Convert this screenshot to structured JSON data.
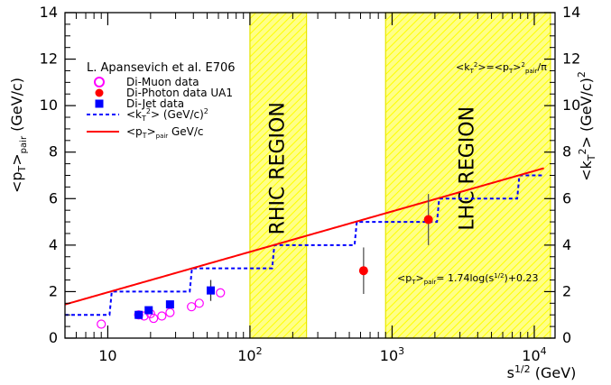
{
  "chart_data": {
    "type": "scatter",
    "title": "",
    "xlabel": "s^{1/2} (GeV)",
    "ylabel": "<p_T>_pair (GeV/c)",
    "y2label": "<k_T^2> (GeV/c)^2",
    "xscale": "log",
    "xlim": [
      5,
      14000
    ],
    "ylim": [
      0,
      14
    ],
    "grid": false,
    "legend_position": "top-left",
    "x_ticks": [
      {
        "value": 10,
        "base": "10",
        "exp": ""
      },
      {
        "value": 100,
        "base": "10",
        "exp": "2"
      },
      {
        "value": 1000,
        "base": "10",
        "exp": "3"
      },
      {
        "value": 10000,
        "base": "10",
        "exp": "4"
      }
    ],
    "y_ticks": [
      "0",
      "2",
      "4",
      "6",
      "8",
      "10",
      "12",
      "14"
    ],
    "legend": {
      "title": "L. Apansevich et al. E706",
      "entries": [
        {
          "label": "Di-Muon data",
          "marker": "open-circle",
          "color": "#ff00ff"
        },
        {
          "label": "Di-Photon data UA1",
          "marker": "filled-circle",
          "color": "#ff0000"
        },
        {
          "label": "Di-Jet data",
          "marker": "filled-square",
          "color": "#0000ff"
        },
        {
          "label": "<k_T^2> (GeV/c)^2",
          "marker": "dashed-line",
          "color": "#0000ff"
        },
        {
          "label": "<p_T>_pair GeV/c",
          "marker": "solid-line",
          "color": "#ff0000"
        }
      ]
    },
    "regions": [
      {
        "label": "RHIC REGION",
        "x": [
          100,
          250
        ],
        "color": "#ffff66"
      },
      {
        "label": "LHC REGION",
        "x": [
          900,
          13000
        ],
        "color": "#ffff66"
      }
    ],
    "annotations": {
      "upper_right": "<k_T^2> = <p_T>^2_pair / π",
      "fit_formula": "<p_T>_pair = 1.74log(s^{1/2}) + 0.23"
    },
    "series": [
      {
        "name": "Di-Muon data",
        "marker": "open-circle",
        "color": "#ff00ff",
        "points": [
          {
            "x": 9,
            "y": 0.6
          },
          {
            "x": 16.5,
            "y": 1.0
          },
          {
            "x": 18,
            "y": 0.95
          },
          {
            "x": 20,
            "y": 1.05
          },
          {
            "x": 21,
            "y": 0.85
          },
          {
            "x": 24,
            "y": 0.95
          },
          {
            "x": 27.4,
            "y": 1.1
          },
          {
            "x": 38.8,
            "y": 1.35
          },
          {
            "x": 44,
            "y": 1.5
          },
          {
            "x": 62,
            "y": 1.95
          }
        ]
      },
      {
        "name": "Di-Photon data UA1",
        "marker": "filled-circle",
        "color": "#ff0000",
        "points": [
          {
            "x": 630,
            "y": 2.9,
            "err": 1.0
          },
          {
            "x": 1800,
            "y": 5.1,
            "err": 1.1
          }
        ]
      },
      {
        "name": "Di-Jet data",
        "marker": "filled-square",
        "color": "#0000ff",
        "points": [
          {
            "x": 16.5,
            "y": 1.0,
            "err": 0.1
          },
          {
            "x": 19.4,
            "y": 1.2,
            "err": 0.1
          },
          {
            "x": 27.4,
            "y": 1.45,
            "err": 0.15
          },
          {
            "x": 53,
            "y": 2.05,
            "err": 0.45
          }
        ]
      },
      {
        "name": "<k_T^2> (GeV/c)^2",
        "style": "dashed-curve",
        "color": "#0000ff",
        "formula": "(1.74*log10(x)+0.23)^2/pi"
      },
      {
        "name": "<p_T>_pair GeV/c",
        "style": "solid-line",
        "color": "#ff0000",
        "formula": "1.74*log10(x)+0.23"
      }
    ]
  }
}
